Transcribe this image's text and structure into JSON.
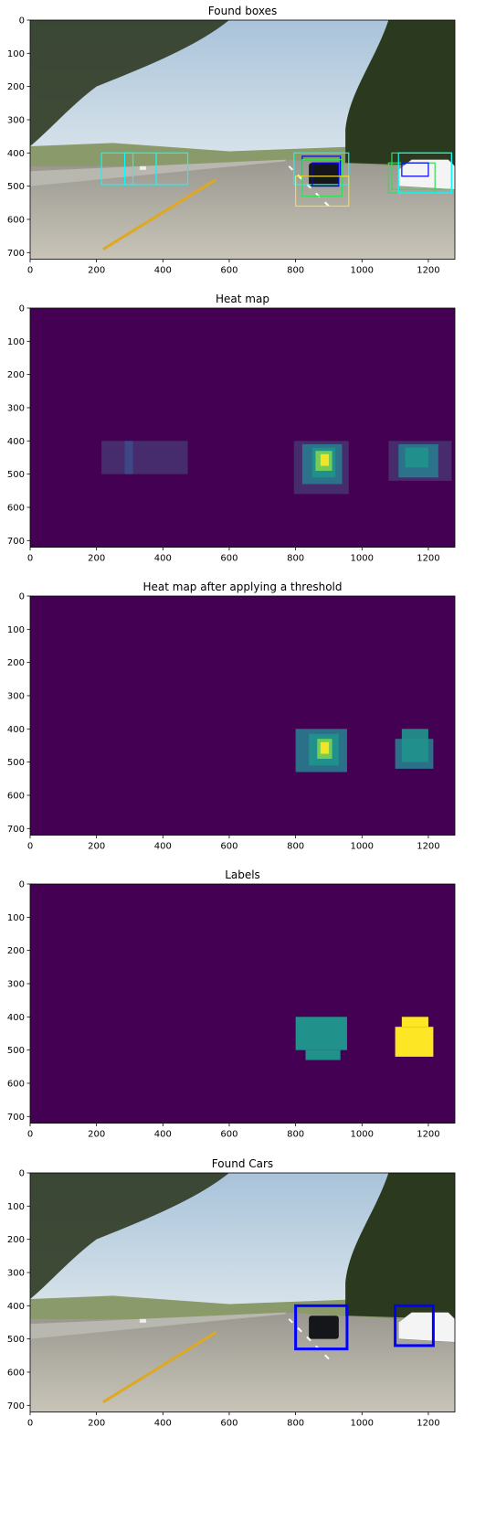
{
  "colors": {
    "viridis_bg": "#440154",
    "viridis_low": "#482878",
    "viridis_mid": "#21918c",
    "viridis_midlow": "#2a788e",
    "viridis_high": "#fde725",
    "box_cyan": "#00ffff",
    "box_blue": "#0000ff",
    "box_green": "#33dd55",
    "box_yellow": "#f5e02a",
    "car_box": "#0000ff"
  },
  "panels": [
    {
      "title": "Found boxes",
      "kind": "photo_boxes",
      "x_ticks": [
        "0",
        "200",
        "400",
        "600",
        "800",
        "1000",
        "1200"
      ],
      "y_ticks": [
        "0",
        "100",
        "200",
        "300",
        "400",
        "500",
        "600",
        "700"
      ],
      "boxes": [
        {
          "x": [
            215,
            310
          ],
          "y": [
            400,
            495
          ],
          "color": "box_cyan"
        },
        {
          "x": [
            285,
            380
          ],
          "y": [
            400,
            495
          ],
          "color": "box_cyan"
        },
        {
          "x": [
            380,
            475
          ],
          "y": [
            400,
            495
          ],
          "color": "box_cyan"
        },
        {
          "x": [
            795,
            960
          ],
          "y": [
            400,
            495
          ],
          "color": "box_cyan"
        },
        {
          "x": [
            820,
            935
          ],
          "y": [
            410,
            470
          ],
          "color": "box_blue"
        },
        {
          "x": [
            850,
            930
          ],
          "y": [
            430,
            500
          ],
          "color": "box_blue"
        },
        {
          "x": [
            820,
            940
          ],
          "y": [
            420,
            530
          ],
          "color": "box_green"
        },
        {
          "x": [
            800,
            960
          ],
          "y": [
            470,
            560
          ],
          "color": "box_yellow"
        },
        {
          "x": [
            1090,
            1270
          ],
          "y": [
            400,
            510
          ],
          "color": "box_green"
        },
        {
          "x": [
            1080,
            1220
          ],
          "y": [
            430,
            520
          ],
          "color": "box_green"
        },
        {
          "x": [
            1110,
            1270
          ],
          "y": [
            400,
            520
          ],
          "color": "box_cyan"
        },
        {
          "x": [
            1120,
            1200
          ],
          "y": [
            430,
            470
          ],
          "color": "box_blue"
        }
      ]
    },
    {
      "title": "Heat map",
      "kind": "heat",
      "x_ticks": [
        "0",
        "200",
        "400",
        "600",
        "800",
        "1000",
        "1200"
      ],
      "y_ticks": [
        "0",
        "100",
        "200",
        "300",
        "400",
        "500",
        "600",
        "700"
      ],
      "cells": [
        {
          "x": [
            215,
            475
          ],
          "y": [
            400,
            500
          ],
          "level": "low"
        },
        {
          "x": [
            285,
            310
          ],
          "y": [
            400,
            500
          ],
          "level": "low2"
        },
        {
          "x": [
            795,
            960
          ],
          "y": [
            400,
            560
          ],
          "level": "low"
        },
        {
          "x": [
            820,
            940
          ],
          "y": [
            410,
            530
          ],
          "level": "midlow"
        },
        {
          "x": [
            850,
            920
          ],
          "y": [
            420,
            510
          ],
          "level": "mid"
        },
        {
          "x": [
            860,
            910
          ],
          "y": [
            430,
            490
          ],
          "level": "high2"
        },
        {
          "x": [
            875,
            900
          ],
          "y": [
            440,
            475
          ],
          "level": "high"
        },
        {
          "x": [
            1080,
            1270
          ],
          "y": [
            400,
            520
          ],
          "level": "low"
        },
        {
          "x": [
            1110,
            1230
          ],
          "y": [
            410,
            510
          ],
          "level": "midlow"
        },
        {
          "x": [
            1130,
            1200
          ],
          "y": [
            420,
            480
          ],
          "level": "mid"
        }
      ]
    },
    {
      "title": "Heat map after applying a threshold",
      "kind": "heat",
      "x_ticks": [
        "0",
        "200",
        "400",
        "600",
        "800",
        "1000",
        "1200"
      ],
      "y_ticks": [
        "0",
        "100",
        "200",
        "300",
        "400",
        "500",
        "600",
        "700"
      ],
      "cells": [
        {
          "x": [
            800,
            955
          ],
          "y": [
            400,
            530
          ],
          "level": "midlow"
        },
        {
          "x": [
            840,
            930
          ],
          "y": [
            415,
            510
          ],
          "level": "mid"
        },
        {
          "x": [
            865,
            910
          ],
          "y": [
            430,
            490
          ],
          "level": "high2"
        },
        {
          "x": [
            875,
            900
          ],
          "y": [
            440,
            475
          ],
          "level": "high"
        },
        {
          "x": [
            1100,
            1215
          ],
          "y": [
            430,
            520
          ],
          "level": "midlow"
        },
        {
          "x": [
            1120,
            1200
          ],
          "y": [
            400,
            500
          ],
          "level": "mid"
        }
      ]
    },
    {
      "title": "Labels",
      "kind": "labels",
      "x_ticks": [
        "0",
        "200",
        "400",
        "600",
        "800",
        "1000",
        "1200"
      ],
      "y_ticks": [
        "0",
        "100",
        "200",
        "300",
        "400",
        "500",
        "600",
        "700"
      ],
      "cells": [
        {
          "x": [
            800,
            955
          ],
          "y": [
            400,
            500
          ],
          "level": "mid"
        },
        {
          "x": [
            830,
            935
          ],
          "y": [
            500,
            530
          ],
          "level": "mid"
        },
        {
          "x": [
            1120,
            1200
          ],
          "y": [
            400,
            430
          ],
          "level": "high"
        },
        {
          "x": [
            1100,
            1215
          ],
          "y": [
            430,
            520
          ],
          "level": "high"
        }
      ]
    },
    {
      "title": "Found Cars",
      "kind": "photo_cars",
      "x_ticks": [
        "0",
        "200",
        "400",
        "600",
        "800",
        "1000",
        "1200"
      ],
      "y_ticks": [
        "0",
        "100",
        "200",
        "300",
        "400",
        "500",
        "600",
        "700"
      ],
      "boxes": [
        {
          "x": [
            800,
            955
          ],
          "y": [
            400,
            530
          ],
          "color": "car_box"
        },
        {
          "x": [
            1100,
            1215
          ],
          "y": [
            400,
            520
          ],
          "color": "car_box"
        }
      ]
    }
  ]
}
